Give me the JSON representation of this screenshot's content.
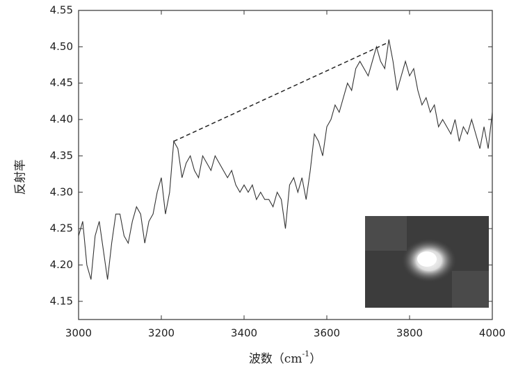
{
  "chart_data": {
    "type": "line",
    "ylabel": "反射率",
    "xlabel": [
      "波数（cm",
      "-1",
      "）"
    ],
    "xlim": [
      3000,
      4000
    ],
    "xticks": [
      3000,
      3200,
      3400,
      3600,
      3800,
      4000
    ],
    "ylim": [
      4.125,
      4.55
    ],
    "yticks": [
      4.15,
      {
        "value": 4.2,
        "label": "4.20"
      },
      4.25,
      {
        "value": 4.3,
        "label": "4.30"
      },
      4.35,
      {
        "value": 4.4,
        "label": "4.40"
      },
      4.45,
      {
        "value": 4.5,
        "label": "4.50"
      },
      4.55
    ],
    "x": [
      3000,
      3010,
      3020,
      3030,
      3040,
      3050,
      3060,
      3070,
      3080,
      3090,
      3100,
      3110,
      3120,
      3130,
      3140,
      3150,
      3160,
      3170,
      3180,
      3190,
      3200,
      3210,
      3220,
      3230,
      3240,
      3250,
      3260,
      3270,
      3280,
      3290,
      3300,
      3310,
      3320,
      3330,
      3340,
      3350,
      3360,
      3370,
      3380,
      3390,
      3400,
      3410,
      3420,
      3430,
      3440,
      3450,
      3460,
      3470,
      3480,
      3490,
      3500,
      3510,
      3520,
      3530,
      3540,
      3550,
      3560,
      3570,
      3580,
      3590,
      3600,
      3610,
      3620,
      3630,
      3640,
      3650,
      3660,
      3670,
      3680,
      3690,
      3700,
      3710,
      3720,
      3730,
      3740,
      3750,
      3760,
      3770,
      3780,
      3790,
      3800,
      3810,
      3820,
      3830,
      3840,
      3850,
      3860,
      3870,
      3880,
      3890,
      3900,
      3910,
      3920,
      3930,
      3940,
      3950,
      3960,
      3970,
      3980,
      3990,
      4000
    ],
    "series": [
      {
        "color": "#333333",
        "values": [
          4.24,
          4.26,
          4.2,
          4.18,
          4.24,
          4.26,
          4.22,
          4.18,
          4.23,
          4.27,
          4.27,
          4.24,
          4.23,
          4.26,
          4.28,
          4.27,
          4.23,
          4.26,
          4.27,
          4.3,
          4.32,
          4.27,
          4.3,
          4.37,
          4.36,
          4.32,
          4.34,
          4.35,
          4.33,
          4.32,
          4.35,
          4.34,
          4.33,
          4.35,
          4.34,
          4.33,
          4.32,
          4.33,
          4.31,
          4.3,
          4.31,
          4.3,
          4.31,
          4.29,
          4.3,
          4.29,
          4.29,
          4.28,
          4.3,
          4.29,
          4.25,
          4.31,
          4.32,
          4.3,
          4.32,
          4.29,
          4.33,
          4.38,
          4.37,
          4.35,
          4.39,
          4.4,
          4.42,
          4.41,
          4.43,
          4.45,
          4.44,
          4.47,
          4.48,
          4.47,
          4.46,
          4.48,
          4.5,
          4.48,
          4.47,
          4.51,
          4.48,
          4.44,
          4.46,
          4.48,
          4.46,
          4.47,
          4.44,
          4.42,
          4.43,
          4.41,
          4.42,
          4.39,
          4.4,
          4.39,
          4.38,
          4.4,
          4.37,
          4.39,
          4.38,
          4.4,
          4.38,
          4.36,
          4.39,
          4.36,
          4.41
        ]
      }
    ],
    "dashed_line": {
      "x": [
        3230,
        3745
      ],
      "y": [
        4.37,
        4.505
      ]
    }
  }
}
